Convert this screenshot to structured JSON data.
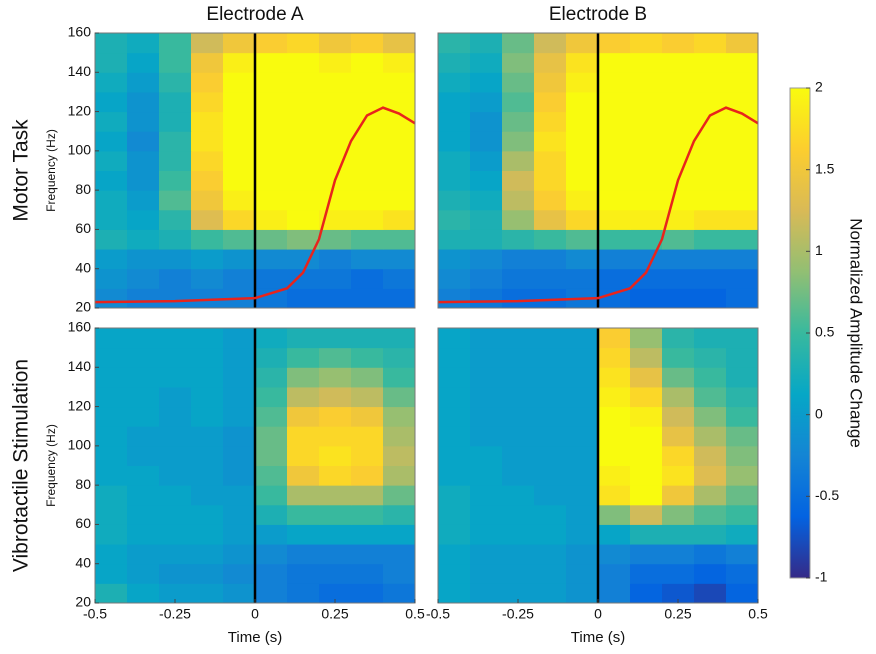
{
  "chart_data": [
    {
      "type": "heatmap",
      "title": "Electrode A",
      "row_label": "Motor Task",
      "ylabel": "Frequency (Hz)",
      "xbins": [
        -0.5,
        -0.4,
        -0.3,
        -0.2,
        -0.1,
        0,
        0.1,
        0.2,
        0.3,
        0.4,
        0.5
      ],
      "ybins": [
        20,
        30,
        40,
        50,
        60,
        70,
        80,
        90,
        100,
        110,
        120,
        130,
        140,
        150,
        160
      ],
      "xlim": [
        -0.5,
        0.5
      ],
      "ylim": [
        20,
        160
      ],
      "yticks": [
        20,
        40,
        60,
        80,
        100,
        120,
        140,
        160
      ],
      "vline": 0,
      "z": [
        [
          -0.2,
          -0.3,
          -0.3,
          -0.3,
          -0.3,
          -0.4,
          -0.5,
          -0.5,
          -0.5,
          -0.5
        ],
        [
          -0.1,
          -0.2,
          -0.3,
          -0.2,
          -0.3,
          -0.4,
          -0.4,
          -0.4,
          -0.5,
          -0.4
        ],
        [
          0,
          -0.1,
          -0.1,
          0,
          -0.1,
          -0.2,
          -0.2,
          -0.3,
          -0.2,
          -0.2
        ],
        [
          0.3,
          0.2,
          0.3,
          0.5,
          0.6,
          0.7,
          0.8,
          0.7,
          0.6,
          0.6
        ],
        [
          0.2,
          0.1,
          0.4,
          1.3,
          1.7,
          1.9,
          2,
          1.9,
          1.9,
          1.8
        ],
        [
          0.2,
          0,
          0.6,
          1.5,
          1.9,
          2,
          2,
          2,
          2,
          2
        ],
        [
          0.1,
          -0.1,
          0.5,
          1.6,
          2,
          2,
          2,
          2,
          2,
          2
        ],
        [
          0.2,
          -0.1,
          0.4,
          1.7,
          2,
          2,
          2,
          2,
          2,
          2
        ],
        [
          0.1,
          -0.2,
          0.4,
          1.8,
          2,
          2,
          2,
          2,
          2,
          2
        ],
        [
          0.2,
          -0.1,
          0.3,
          1.8,
          2,
          2,
          2,
          2,
          2,
          2
        ],
        [
          0.1,
          -0.1,
          0.3,
          1.7,
          2,
          2,
          2,
          2,
          2,
          2
        ],
        [
          0.2,
          0,
          0.4,
          1.6,
          2,
          2,
          2,
          2,
          2,
          2
        ],
        [
          0.3,
          0.1,
          0.5,
          1.5,
          1.9,
          2,
          2,
          1.9,
          2,
          1.9
        ],
        [
          0.3,
          0.2,
          0.5,
          1.2,
          1.5,
          1.6,
          1.7,
          1.5,
          1.6,
          1.4
        ]
      ],
      "series": [
        {
          "color": "#e8241c",
          "x": [
            -0.5,
            -0.25,
            0,
            0.1,
            0.15,
            0.2,
            0.25,
            0.3,
            0.35,
            0.4,
            0.45,
            0.5
          ],
          "values": [
            23,
            23.5,
            25,
            30,
            38,
            55,
            85,
            105,
            118,
            122,
            119,
            114
          ]
        }
      ]
    },
    {
      "type": "heatmap",
      "title": "Electrode B",
      "xbins": [
        -0.5,
        -0.4,
        -0.3,
        -0.2,
        -0.1,
        0,
        0.1,
        0.2,
        0.3,
        0.4,
        0.5
      ],
      "ybins": [
        20,
        30,
        40,
        50,
        60,
        70,
        80,
        90,
        100,
        110,
        120,
        130,
        140,
        150,
        160
      ],
      "xlim": [
        -0.5,
        0.5
      ],
      "ylim": [
        20,
        160
      ],
      "vline": 0,
      "z": [
        [
          -0.3,
          -0.4,
          -0.5,
          -0.5,
          -0.4,
          -0.5,
          -0.6,
          -0.6,
          -0.6,
          -0.5
        ],
        [
          -0.2,
          -0.3,
          -0.4,
          -0.4,
          -0.4,
          -0.5,
          -0.5,
          -0.5,
          -0.5,
          -0.5
        ],
        [
          -0.1,
          -0.2,
          -0.3,
          -0.3,
          -0.2,
          -0.3,
          -0.3,
          -0.3,
          -0.3,
          -0.3
        ],
        [
          0.3,
          0.3,
          0.4,
          0.5,
          0.6,
          0.5,
          0.5,
          0.6,
          0.5,
          0.5
        ],
        [
          0.4,
          0.3,
          0.9,
          1.4,
          1.7,
          1.9,
          1.9,
          1.9,
          1.8,
          1.8
        ],
        [
          0.3,
          0.2,
          1.1,
          1.6,
          1.9,
          2,
          2,
          2,
          2,
          2
        ],
        [
          0.2,
          0.1,
          1.2,
          1.7,
          2,
          2,
          2,
          2,
          2,
          2
        ],
        [
          0.2,
          0,
          1,
          1.7,
          2,
          2,
          2,
          2,
          2,
          2
        ],
        [
          0.1,
          -0.1,
          0.8,
          1.8,
          2,
          2,
          2,
          2,
          2,
          2
        ],
        [
          0.1,
          -0.1,
          0.7,
          1.7,
          2,
          2,
          2,
          2,
          2,
          2
        ],
        [
          0.1,
          0,
          0.6,
          1.6,
          2,
          2,
          2,
          2,
          2,
          2
        ],
        [
          0.2,
          0.1,
          0.7,
          1.5,
          1.9,
          2,
          2,
          2,
          2,
          2
        ],
        [
          0.3,
          0.2,
          0.8,
          1.4,
          1.8,
          2,
          2,
          2,
          2,
          2
        ],
        [
          0.4,
          0.3,
          0.7,
          1.2,
          1.5,
          1.6,
          1.7,
          1.6,
          1.7,
          1.5
        ]
      ],
      "series": [
        {
          "color": "#e8241c",
          "x": [
            -0.5,
            -0.25,
            0,
            0.1,
            0.15,
            0.2,
            0.25,
            0.3,
            0.35,
            0.4,
            0.45,
            0.5
          ],
          "values": [
            23,
            23.5,
            25,
            30,
            38,
            55,
            85,
            105,
            118,
            122,
            119,
            114
          ]
        }
      ]
    },
    {
      "type": "heatmap",
      "row_label": "Vibrotactile Stimulation",
      "ylabel": "Frequency (Hz)",
      "xlabel": "Time (s)",
      "xbins": [
        -0.5,
        -0.4,
        -0.3,
        -0.2,
        -0.1,
        0,
        0.1,
        0.2,
        0.3,
        0.4,
        0.5
      ],
      "ybins": [
        20,
        30,
        40,
        50,
        60,
        70,
        80,
        90,
        100,
        110,
        120,
        130,
        140,
        150,
        160
      ],
      "xlim": [
        -0.5,
        0.5
      ],
      "ylim": [
        20,
        160
      ],
      "xticks": [
        -0.5,
        -0.25,
        0,
        0.25,
        0.5
      ],
      "yticks": [
        20,
        40,
        60,
        80,
        100,
        120,
        140,
        160
      ],
      "vline": 0,
      "z": [
        [
          0.3,
          0.1,
          0,
          0,
          -0.1,
          -0.3,
          -0.4,
          -0.5,
          -0.5,
          -0.4
        ],
        [
          0.1,
          0,
          -0.1,
          -0.1,
          -0.2,
          -0.3,
          -0.4,
          -0.4,
          -0.4,
          -0.3
        ],
        [
          0.1,
          0,
          0,
          0,
          -0.1,
          -0.2,
          -0.3,
          -0.3,
          -0.3,
          -0.3
        ],
        [
          0.2,
          0.1,
          0.1,
          0.1,
          0,
          0,
          0.1,
          0.1,
          0.1,
          0.1
        ],
        [
          0.2,
          0.1,
          0.1,
          0.1,
          0,
          0.3,
          0.5,
          0.5,
          0.5,
          0.4
        ],
        [
          0.2,
          0.1,
          0.1,
          0,
          0,
          0.5,
          1,
          1,
          1,
          0.7
        ],
        [
          0.1,
          0.1,
          0,
          0,
          -0.1,
          0.6,
          1.5,
          1.7,
          1.6,
          1
        ],
        [
          0.1,
          0,
          0,
          0,
          -0.1,
          0.7,
          1.7,
          1.8,
          1.7,
          1.1
        ],
        [
          0.1,
          0,
          0,
          0,
          -0.1,
          0.7,
          1.7,
          1.7,
          1.7,
          1
        ],
        [
          0.1,
          0.1,
          0,
          0.1,
          0,
          0.6,
          1.5,
          1.6,
          1.5,
          0.9
        ],
        [
          0.1,
          0.1,
          0,
          0.1,
          0,
          0.5,
          1.1,
          1.2,
          1.1,
          0.7
        ],
        [
          0.1,
          0.1,
          0.1,
          0.1,
          0,
          0.4,
          0.8,
          0.9,
          0.8,
          0.5
        ],
        [
          0.1,
          0.1,
          0.1,
          0.1,
          0,
          0.3,
          0.5,
          0.6,
          0.5,
          0.4
        ],
        [
          0.1,
          0.1,
          0.1,
          0.1,
          0,
          0.2,
          0.3,
          0.3,
          0.3,
          0.3
        ]
      ]
    },
    {
      "type": "heatmap",
      "xlabel": "Time (s)",
      "xbins": [
        -0.5,
        -0.4,
        -0.3,
        -0.2,
        -0.1,
        0,
        0.1,
        0.2,
        0.3,
        0.4,
        0.5
      ],
      "ybins": [
        20,
        30,
        40,
        50,
        60,
        70,
        80,
        90,
        100,
        110,
        120,
        130,
        140,
        150,
        160
      ],
      "xlim": [
        -0.5,
        0.5
      ],
      "ylim": [
        20,
        160
      ],
      "xticks": [
        -0.5,
        -0.25,
        0,
        0.25,
        0.5
      ],
      "vline": 0,
      "z": [
        [
          0.1,
          0,
          0,
          0,
          -0.1,
          -0.3,
          -0.6,
          -0.7,
          -0.8,
          -0.6
        ],
        [
          0.1,
          0,
          0,
          0,
          -0.1,
          -0.3,
          -0.5,
          -0.5,
          -0.6,
          -0.5
        ],
        [
          0.1,
          0,
          0,
          0,
          -0.1,
          -0.2,
          -0.3,
          -0.3,
          -0.4,
          -0.3
        ],
        [
          0.2,
          0.1,
          0.1,
          0.1,
          0,
          0.1,
          0.3,
          0.3,
          0.3,
          0.2
        ],
        [
          0.2,
          0.1,
          0.1,
          0.1,
          0,
          0.8,
          1.2,
          0.8,
          0.6,
          0.5
        ],
        [
          0.2,
          0.1,
          0.1,
          0,
          0,
          1.8,
          2,
          1.5,
          1,
          0.7
        ],
        [
          0.1,
          0.1,
          0,
          0,
          0,
          1.9,
          2,
          1.8,
          1.3,
          0.9
        ],
        [
          0.1,
          0.1,
          0,
          0,
          0,
          2,
          2,
          1.7,
          1.2,
          0.8
        ],
        [
          0.1,
          0,
          0,
          0,
          0,
          2,
          2,
          1.4,
          1,
          0.7
        ],
        [
          0.1,
          0,
          0,
          0,
          0,
          2,
          1.9,
          1.2,
          0.8,
          0.5
        ],
        [
          0.1,
          0,
          0,
          0,
          0,
          1.9,
          1.7,
          1,
          0.6,
          0.4
        ],
        [
          0.1,
          0,
          0,
          0,
          0,
          1.8,
          1.4,
          0.7,
          0.5,
          0.3
        ],
        [
          0.1,
          0,
          0,
          0,
          0,
          1.7,
          1.1,
          0.5,
          0.4,
          0.3
        ],
        [
          0.1,
          0,
          0,
          0,
          0,
          1.6,
          0.9,
          0.4,
          0.3,
          0.3
        ]
      ]
    },
    {
      "type": "colorbar",
      "label": "Normalized Amplitude Change",
      "zlim": [
        -1,
        2
      ],
      "zticks": [
        -1,
        -0.5,
        0,
        0.5,
        1,
        1.5,
        2
      ],
      "colormap": [
        "#352a87",
        "#0363e1",
        "#1485d4",
        "#06a7c6",
        "#38b99e",
        "#92bf73",
        "#d9ba56",
        "#fcce2e",
        "#f9fb0e"
      ]
    }
  ]
}
